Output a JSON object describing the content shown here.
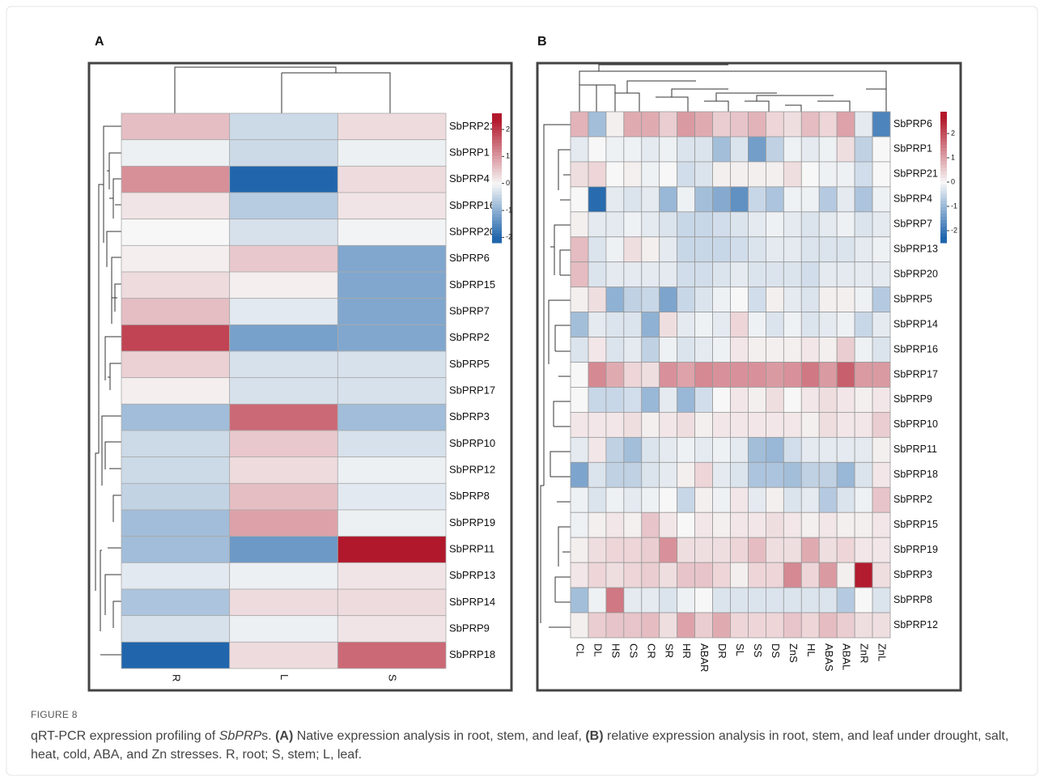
{
  "panels": [
    "A",
    "B"
  ],
  "caption_label": "FIGURE 8",
  "caption": [
    {
      "text": "qRT-PCR expression profiling of "
    },
    {
      "text": "SbPRP",
      "italic": true
    },
    {
      "text": "s. "
    },
    {
      "text": "(A)",
      "bold": true
    },
    {
      "text": " Native expression analysis in root, stem, and leaf, "
    },
    {
      "text": "(B)",
      "bold": true
    },
    {
      "text": " relative expression analysis in root, stem, and leaf under drought, salt, heat, cold, ABA, and Zn stresses. R, root; S, stem; L, leaf."
    }
  ],
  "chart_data": [
    {
      "type": "heatmap",
      "rows": [
        "SbPRP21",
        "SbPRP1",
        "SbPRP4",
        "SbPRP16",
        "SbPRP20",
        "SbPRP6",
        "SbPRP15",
        "SbPRP7",
        "SbPRP2",
        "SbPRP5",
        "SbPRP17",
        "SbPRP3",
        "SbPRP10",
        "SbPRP12",
        "SbPRP8",
        "SbPRP19",
        "SbPRP11",
        "SbPRP13",
        "SbPRP14",
        "SbPRP9",
        "SbPRP18"
      ],
      "columns": [
        "R",
        "L",
        "S"
      ],
      "values": [
        [
          0.6,
          -0.4,
          0.3
        ],
        [
          -0.1,
          -0.4,
          -0.1
        ],
        [
          1.1,
          -2.2,
          0.3
        ],
        [
          0.2,
          -0.6,
          0.2
        ],
        [
          0.0,
          -0.3,
          -0.05
        ],
        [
          0.1,
          0.5,
          -1.1
        ],
        [
          0.3,
          0.1,
          -1.1
        ],
        [
          0.6,
          -0.2,
          -1.1
        ],
        [
          1.9,
          -1.2,
          -1.1
        ],
        [
          0.4,
          -0.3,
          -0.3
        ],
        [
          0.1,
          -0.3,
          -0.3
        ],
        [
          -0.8,
          1.5,
          -0.8
        ],
        [
          -0.4,
          0.5,
          -0.3
        ],
        [
          -0.4,
          0.3,
          -0.1
        ],
        [
          -0.5,
          0.6,
          -0.2
        ],
        [
          -0.8,
          0.9,
          -0.1
        ],
        [
          -0.8,
          -1.3,
          2.5
        ],
        [
          -0.2,
          -0.1,
          0.2
        ],
        [
          -0.7,
          0.3,
          0.3
        ],
        [
          -0.3,
          -0.1,
          0.2
        ],
        [
          -2.2,
          0.3,
          1.5
        ]
      ],
      "zlim": [
        -2.2,
        2.6
      ],
      "zticks": [
        2,
        1,
        0,
        -1,
        -2
      ],
      "colors": [
        "#2166ac",
        "#f7f7f7",
        "#b2182b"
      ]
    },
    {
      "type": "heatmap",
      "rows": [
        "SbPRP6",
        "SbPRP1",
        "SbPRP21",
        "SbPRP4",
        "SbPRP7",
        "SbPRP13",
        "SbPRP20",
        "SbPRP5",
        "SbPRP14",
        "SbPRP16",
        "SbPRP17",
        "SbPRP9",
        "SbPRP10",
        "SbPRP11",
        "SbPRP18",
        "SbPRP2",
        "SbPRP15",
        "SbPRP19",
        "SbPRP3",
        "SbPRP8",
        "SbPRP12"
      ],
      "columns": [
        "CL",
        "DL",
        "HS",
        "CS",
        "CR",
        "SR",
        "HR",
        "ABAR",
        "DR",
        "SL",
        "SS",
        "DS",
        "ZnS",
        "HL",
        "ABAS",
        "ABAL",
        "ZnR",
        "ZnL"
      ],
      "values": [
        [
          0.8,
          -0.9,
          0.1,
          0.9,
          0.9,
          0.5,
          1.1,
          0.9,
          0.5,
          0.6,
          0.8,
          0.4,
          0.3,
          0.7,
          0.4,
          1.0,
          -0.2,
          -1.8
        ],
        [
          -0.2,
          0,
          -0.1,
          -0.1,
          -0.2,
          -0.1,
          -0.3,
          -0.3,
          -0.9,
          -0.3,
          -1.4,
          -0.6,
          -0.1,
          -0.2,
          -0.1,
          0.3,
          -0.6,
          0
        ],
        [
          0.3,
          0.4,
          0,
          0.1,
          -0.1,
          0,
          -0.4,
          -0.3,
          0.1,
          0.1,
          0.1,
          0.1,
          0.3,
          0,
          -0.1,
          -0.1,
          -0.4,
          0
        ],
        [
          0,
          -2.2,
          -0.2,
          -0.3,
          -0.2,
          -1,
          -0.1,
          -0.9,
          -1.2,
          -1.6,
          -0.5,
          -0.8,
          -0.1,
          -0.1,
          -0.7,
          -0.2,
          -0.8,
          -0.1
        ],
        [
          0.1,
          -0.2,
          -0.2,
          -0.1,
          -0.2,
          -0.3,
          -0.5,
          -0.5,
          -0.4,
          -0.3,
          -0.2,
          -0.1,
          -0.2,
          -0.3,
          -0.2,
          -0.1,
          -0.3,
          -0.2
        ],
        [
          0.7,
          -0.3,
          -0.1,
          0.3,
          0.1,
          -0.2,
          -0.5,
          -0.5,
          -0.5,
          -0.4,
          -0.3,
          -0.2,
          -0.2,
          -0.3,
          -0.3,
          -0.3,
          -0.2,
          -0.1
        ],
        [
          0.7,
          -0.3,
          -0.2,
          -0.2,
          -0.2,
          -0.2,
          -0.4,
          -0.4,
          -0.3,
          -0.2,
          -0.3,
          -0.3,
          -0.3,
          -0.4,
          -0.2,
          -0.2,
          -0.2,
          -0.2
        ],
        [
          0.1,
          0.3,
          -1.1,
          -0.6,
          -0.5,
          -1.3,
          -0.5,
          -0.3,
          -0.1,
          0,
          -0.4,
          0.1,
          -0.2,
          -0.3,
          0.1,
          0.1,
          -0.1,
          -0.7
        ],
        [
          -0.9,
          -0.2,
          -0.3,
          -0.3,
          -1.1,
          0.3,
          -0.2,
          -0.1,
          -0.2,
          0.4,
          -0.1,
          -0.3,
          -0.1,
          -0.3,
          -0.2,
          -0.1,
          -0.5,
          -0.2
        ],
        [
          -0.3,
          0.2,
          -0.3,
          -0.2,
          -0.6,
          -0.1,
          -0.3,
          -0.2,
          -0.1,
          0.2,
          0.1,
          0.1,
          0.1,
          0.2,
          0.1,
          0.5,
          -0.1,
          -0.3
        ],
        [
          0,
          1.3,
          0.9,
          0.4,
          0.3,
          1.2,
          1.0,
          1.3,
          1.2,
          1.2,
          1.2,
          1.1,
          1.2,
          1.5,
          1.1,
          1.8,
          1.1,
          1.1
        ],
        [
          0,
          -0.5,
          -0.5,
          -0.4,
          -1.0,
          -0.2,
          -1.0,
          -0.4,
          0,
          0.2,
          0.1,
          0.3,
          0,
          0.2,
          0.3,
          0.2,
          0.1,
          0.2
        ],
        [
          0.2,
          0.2,
          0.2,
          0.3,
          0.1,
          0.2,
          0.3,
          0.1,
          0.2,
          0.2,
          0.2,
          0.2,
          0.2,
          0.1,
          0.3,
          0.2,
          0.2,
          0.5
        ],
        [
          -0.2,
          0.2,
          -0.6,
          -0.9,
          -0.3,
          -0.2,
          -0.1,
          -0.2,
          -0.1,
          -0.2,
          -0.9,
          -1.0,
          -0.4,
          -0.2,
          -0.2,
          -0.2,
          -0.2,
          0.1
        ],
        [
          -1.3,
          -0.3,
          -0.6,
          -0.6,
          -0.3,
          -0.2,
          0.1,
          0.4,
          -0.2,
          -0.3,
          -0.8,
          -0.8,
          -0.9,
          -0.6,
          -0.6,
          -1.0,
          -0.3,
          0.2
        ],
        [
          -0.1,
          -0.3,
          -0.1,
          -0.2,
          -0.1,
          0,
          -0.5,
          0.1,
          -0.1,
          0.2,
          -0.2,
          0.1,
          -0.3,
          -0.2,
          -0.7,
          -0.3,
          -0.1,
          0.6
        ],
        [
          -0.1,
          0.1,
          0.2,
          0.1,
          0.6,
          0.2,
          0,
          0.2,
          0.1,
          0.2,
          0.2,
          0.3,
          0.2,
          0.1,
          0.2,
          0.1,
          0.1,
          0.2
        ],
        [
          0.1,
          0.3,
          0.4,
          0.4,
          0.5,
          1.2,
          0.3,
          0.3,
          0.3,
          0.4,
          0.7,
          0.3,
          0.3,
          0.9,
          0.3,
          0.4,
          0.2,
          0.2
        ],
        [
          0.2,
          0.4,
          0.3,
          0.4,
          0.5,
          0.3,
          0.6,
          0.6,
          0.4,
          0.1,
          0.4,
          0.4,
          1.3,
          0.4,
          1.1,
          0.1,
          2.6,
          0.3
        ],
        [
          -0.9,
          -0.1,
          1.5,
          -0.2,
          -0.2,
          -0.3,
          -0.1,
          0,
          -0.3,
          -0.3,
          -0.3,
          -0.3,
          -0.3,
          -0.3,
          -0.3,
          -0.7,
          0,
          -0.3
        ],
        [
          0.1,
          0.5,
          0.6,
          0.6,
          0.7,
          0.3,
          1.0,
          0.5,
          0.9,
          0.4,
          0.4,
          0.4,
          0.6,
          0.4,
          0.7,
          0.5,
          0.3,
          0.3
        ]
      ],
      "zlim": [
        -2.5,
        2.9
      ],
      "zticks": [
        2,
        1,
        0,
        -1,
        -2
      ],
      "colors": [
        "#2166ac",
        "#f7f7f7",
        "#b2182b"
      ]
    }
  ]
}
